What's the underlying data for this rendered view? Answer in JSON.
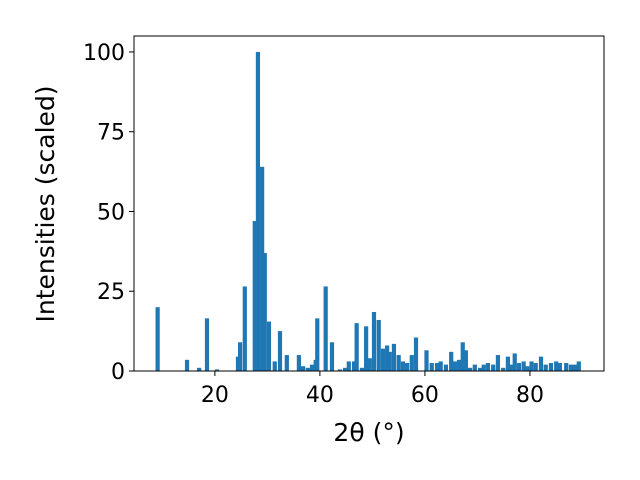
{
  "chart_data": {
    "type": "bar",
    "xlabel": "2θ (°)",
    "ylabel": "Intensities (scaled)",
    "color": "#1f77b4",
    "bar_width": 0.8,
    "x": [
      9.1,
      14.7,
      17.0,
      18.5,
      20.4,
      24.4,
      24.8,
      25.7,
      27.6,
      28.2,
      29.0,
      29.5,
      30.3,
      31.4,
      32.4,
      33.7,
      36.0,
      36.8,
      37.7,
      38.5,
      39.2,
      39.5,
      41.1,
      42.3,
      43.8,
      44.8,
      45.5,
      46.5,
      47.0,
      48.0,
      48.8,
      49.5,
      50.3,
      51.2,
      52.0,
      52.8,
      53.3,
      54.1,
      55.0,
      55.8,
      56.6,
      57.5,
      58.3,
      60.3,
      61.3,
      62.3,
      63.0,
      64.0,
      65.0,
      65.7,
      66.5,
      67.2,
      67.8,
      68.6,
      69.5,
      70.5,
      71.2,
      72.0,
      73.0,
      73.9,
      74.9,
      75.8,
      76.6,
      77.1,
      77.9,
      78.8,
      79.5,
      80.3,
      81.1,
      82.1,
      83.0,
      84.0,
      85.0,
      85.7,
      86.9,
      87.8,
      88.6,
      89.3
    ],
    "values": [
      20,
      3.5,
      1,
      16.5,
      0.5,
      4.5,
      9,
      26.5,
      47,
      100,
      64,
      37,
      15.5,
      3,
      12.5,
      5,
      5,
      1.5,
      1,
      2,
      3.5,
      16.5,
      26.5,
      9,
      0.5,
      1,
      3,
      3,
      15,
      1,
      14,
      4,
      18.5,
      16,
      7,
      8,
      6,
      8.5,
      5,
      3,
      2.5,
      5,
      10.5,
      6.5,
      2.5,
      2.5,
      3,
      2,
      6,
      3,
      3.5,
      9,
      6.5,
      1,
      2,
      1,
      2,
      2.5,
      2,
      5,
      1,
      4.5,
      2,
      5.5,
      2.5,
      3,
      1.5,
      3,
      2.5,
      4.5,
      2,
      2.5,
      3,
      2.5,
      2.5,
      2,
      2,
      3
    ],
    "xlim": [
      4.6,
      94.1
    ],
    "ylim": [
      0,
      105
    ],
    "xticks": [
      20,
      40,
      60,
      80
    ],
    "yticks": [
      0,
      25,
      50,
      75,
      100
    ],
    "grid": false
  }
}
